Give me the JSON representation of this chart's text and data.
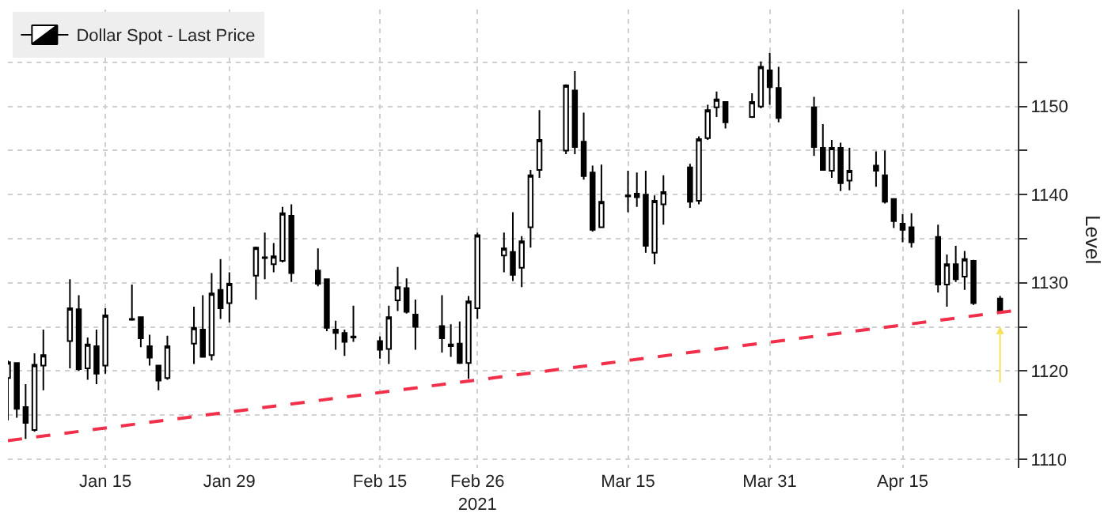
{
  "chart_data": {
    "type": "candlestick",
    "ylabel": "Level",
    "legend": "top left",
    "grid": true,
    "x": [
      "2021-01-04",
      "2021-01-05",
      "2021-01-06",
      "2021-01-07",
      "2021-01-08",
      "2021-01-11",
      "2021-01-12",
      "2021-01-13",
      "2021-01-14",
      "2021-01-15",
      "2021-01-18",
      "2021-01-19",
      "2021-01-20",
      "2021-01-21",
      "2021-01-22",
      "2021-01-25",
      "2021-01-26",
      "2021-01-27",
      "2021-01-28",
      "2021-01-29",
      "2021-02-01",
      "2021-02-02",
      "2021-02-03",
      "2021-02-04",
      "2021-02-05",
      "2021-02-08",
      "2021-02-09",
      "2021-02-10",
      "2021-02-11",
      "2021-02-12",
      "2021-02-15",
      "2021-02-16",
      "2021-02-17",
      "2021-02-18",
      "2021-02-19",
      "2021-02-22",
      "2021-02-23",
      "2021-02-24",
      "2021-02-25",
      "2021-02-26",
      "2021-03-01",
      "2021-03-02",
      "2021-03-03",
      "2021-03-04",
      "2021-03-05",
      "2021-03-08",
      "2021-03-09",
      "2021-03-10",
      "2021-03-11",
      "2021-03-12",
      "2021-03-15",
      "2021-03-16",
      "2021-03-17",
      "2021-03-18",
      "2021-03-19",
      "2021-03-22",
      "2021-03-23",
      "2021-03-24",
      "2021-03-25",
      "2021-03-26",
      "2021-03-29",
      "2021-03-30",
      "2021-03-31",
      "2021-04-01",
      "2021-04-05",
      "2021-04-06",
      "2021-04-07",
      "2021-04-08",
      "2021-04-09",
      "2021-04-12",
      "2021-04-13",
      "2021-04-14",
      "2021-04-15",
      "2021-04-16",
      "2021-04-19",
      "2021-04-20",
      "2021-04-21",
      "2021-04-22",
      "2021-04-23",
      "2021-04-26"
    ],
    "series": [
      {
        "name": "Dollar Spot - Last Price",
        "color": "#000000",
        "ohlc": [
          [
            1119.2,
            1121.2,
            1114.4,
            1121.0
          ],
          [
            1120.9,
            1121.0,
            1114.7,
            1115.7
          ],
          [
            1115.9,
            1118.5,
            1112.3,
            1114.1
          ],
          [
            1113.3,
            1122.0,
            1113.1,
            1120.7
          ],
          [
            1120.6,
            1124.7,
            1117.8,
            1121.8
          ],
          [
            1123.4,
            1130.4,
            1120.3,
            1127.1
          ],
          [
            1127.0,
            1128.6,
            1120.0,
            1120.2
          ],
          [
            1120.3,
            1123.8,
            1119.0,
            1123.0
          ],
          [
            1122.8,
            1124.7,
            1118.5,
            1119.7
          ],
          [
            1120.6,
            1127.1,
            1119.7,
            1126.3
          ],
          [
            1125.8,
            1129.8,
            1125.7,
            1125.9
          ],
          [
            1126.1,
            1126.2,
            1122.7,
            1123.7
          ],
          [
            1122.8,
            1124.1,
            1120.6,
            1121.5
          ],
          [
            1120.6,
            1120.7,
            1117.8,
            1118.9
          ],
          [
            1119.2,
            1124.0,
            1119.0,
            1122.8
          ],
          [
            1123.1,
            1127.3,
            1120.8,
            1124.9
          ],
          [
            1124.7,
            1128.6,
            1121.5,
            1121.6
          ],
          [
            1121.8,
            1131.1,
            1121.2,
            1128.8
          ],
          [
            1129.2,
            1132.7,
            1125.9,
            1127.1
          ],
          [
            1127.7,
            1131.2,
            1125.5,
            1129.9
          ],
          [
            1130.8,
            1134.1,
            1128.1,
            1134.0
          ],
          [
            1132.9,
            1135.7,
            1130.4,
            1132.8
          ],
          [
            1132.1,
            1134.5,
            1131.2,
            1133.0
          ],
          [
            1132.5,
            1138.6,
            1132.3,
            1137.9
          ],
          [
            1137.6,
            1138.9,
            1130.1,
            1131.1
          ],
          [
            1131.4,
            1133.9,
            1129.6,
            1129.9
          ],
          [
            1130.4,
            1130.5,
            1124.5,
            1124.9
          ],
          [
            1124.7,
            1125.7,
            1122.4,
            1124.3
          ],
          [
            1124.3,
            1124.7,
            1121.7,
            1123.3
          ],
          [
            1123.9,
            1127.4,
            1123.3,
            1123.8
          ],
          [
            1123.4,
            1123.9,
            1121.4,
            1122.4
          ],
          [
            1122.5,
            1127.4,
            1120.8,
            1126.1
          ],
          [
            1128.0,
            1131.8,
            1126.8,
            1129.5
          ],
          [
            1129.4,
            1130.5,
            1126.5,
            1126.7
          ],
          [
            1126.4,
            1128.1,
            1122.4,
            1125.0
          ],
          [
            1125.1,
            1128.6,
            1122.1,
            1123.7
          ],
          [
            1123.0,
            1125.3,
            1121.6,
            1122.8
          ],
          [
            1123.1,
            1125.6,
            1120.8,
            1120.9
          ],
          [
            1120.9,
            1128.5,
            1119.1,
            1127.9
          ],
          [
            1127.1,
            1135.7,
            1125.9,
            1135.4
          ],
          [
            1133.1,
            1135.7,
            1131.2,
            1133.9
          ],
          [
            1133.5,
            1138.0,
            1130.2,
            1130.9
          ],
          [
            1131.7,
            1135.3,
            1129.5,
            1134.7
          ],
          [
            1136.3,
            1142.8,
            1134.0,
            1142.2
          ],
          [
            1142.8,
            1149.6,
            1141.9,
            1146.2
          ],
          [
            1145.0,
            1152.5,
            1144.6,
            1152.4
          ],
          [
            1151.8,
            1154.0,
            1144.6,
            1145.4
          ],
          [
            1146.0,
            1149.3,
            1141.7,
            1142.1
          ],
          [
            1142.5,
            1143.3,
            1135.8,
            1136.0
          ],
          [
            1136.3,
            1143.4,
            1136.2,
            1139.2
          ],
          [
            1139.8,
            1142.7,
            1138.0,
            1139.9
          ],
          [
            1140.1,
            1142.5,
            1138.6,
            1139.7
          ],
          [
            1140.0,
            1142.7,
            1133.4,
            1134.2
          ],
          [
            1133.4,
            1139.9,
            1132.1,
            1139.3
          ],
          [
            1138.9,
            1142.2,
            1136.6,
            1140.3
          ],
          [
            1143.1,
            1143.5,
            1138.5,
            1139.2
          ],
          [
            1139.3,
            1146.6,
            1138.9,
            1146.3
          ],
          [
            1146.4,
            1150.2,
            1146.2,
            1149.6
          ],
          [
            1149.9,
            1151.7,
            1148.8,
            1150.8
          ],
          [
            1150.5,
            1150.6,
            1147.5,
            1148.2
          ],
          [
            1148.8,
            1151.5,
            1148.7,
            1150.5
          ],
          [
            1150.0,
            1155.1,
            1149.8,
            1154.5
          ],
          [
            1154.1,
            1156.1,
            1150.2,
            1152.2
          ],
          [
            1152.1,
            1154.5,
            1148.2,
            1148.7
          ],
          [
            1149.9,
            1151.1,
            1144.4,
            1145.4
          ],
          [
            1145.3,
            1148.0,
            1142.7,
            1142.8
          ],
          [
            1142.7,
            1146.2,
            1141.9,
            1145.3
          ],
          [
            1145.3,
            1145.9,
            1140.4,
            1141.3
          ],
          [
            1141.6,
            1145.3,
            1140.5,
            1142.7
          ],
          [
            1143.3,
            1144.9,
            1140.9,
            1142.7
          ],
          [
            1142.2,
            1145.0,
            1139.0,
            1139.2
          ],
          [
            1139.5,
            1139.5,
            1136.2,
            1137.0
          ],
          [
            1136.7,
            1137.8,
            1134.6,
            1136.0
          ],
          [
            1136.3,
            1137.9,
            1134.0,
            1134.6
          ],
          [
            1135.2,
            1136.6,
            1128.9,
            1129.8
          ],
          [
            1129.8,
            1133.2,
            1127.3,
            1132.1
          ],
          [
            1132.1,
            1134.2,
            1130.1,
            1130.4
          ],
          [
            1130.7,
            1133.6,
            1129.2,
            1132.7
          ],
          [
            1132.5,
            1132.6,
            1127.5,
            1127.7
          ],
          [
            1128.2,
            1128.5,
            1126.5,
            1126.8
          ]
        ]
      },
      {
        "type": "line",
        "color": "#f0304a",
        "line_style": "dashed",
        "x": [
          "2021-01-04",
          "2021-04-28"
        ],
        "values": [
          1112.1,
          1126.9
        ]
      }
    ],
    "xlim": [
      "2021-01-04",
      "2021-04-28"
    ],
    "xticks": [
      {
        "value": "2021-01-15",
        "label": "Jan 15"
      },
      {
        "value": "2021-01-29",
        "label": "Jan 29"
      },
      {
        "value": "2021-02-15",
        "label": "Feb 15"
      },
      {
        "value": "2021-02-26",
        "label": "Feb 26\n2021"
      },
      {
        "value": "2021-03-15",
        "label": "Mar 15"
      },
      {
        "value": "2021-03-31",
        "label": "Mar 31"
      },
      {
        "value": "2021-04-15",
        "label": "Apr 15"
      }
    ],
    "ylim": [
      1109,
      1161
    ],
    "yticks": [
      1110,
      {
        "value": 1115,
        "label": null
      },
      1120,
      {
        "value": 1125,
        "label": null
      },
      1130,
      {
        "value": 1135,
        "label": null
      },
      1140,
      {
        "value": 1145,
        "label": null
      },
      1150,
      {
        "value": 1155,
        "label": null
      }
    ]
  }
}
